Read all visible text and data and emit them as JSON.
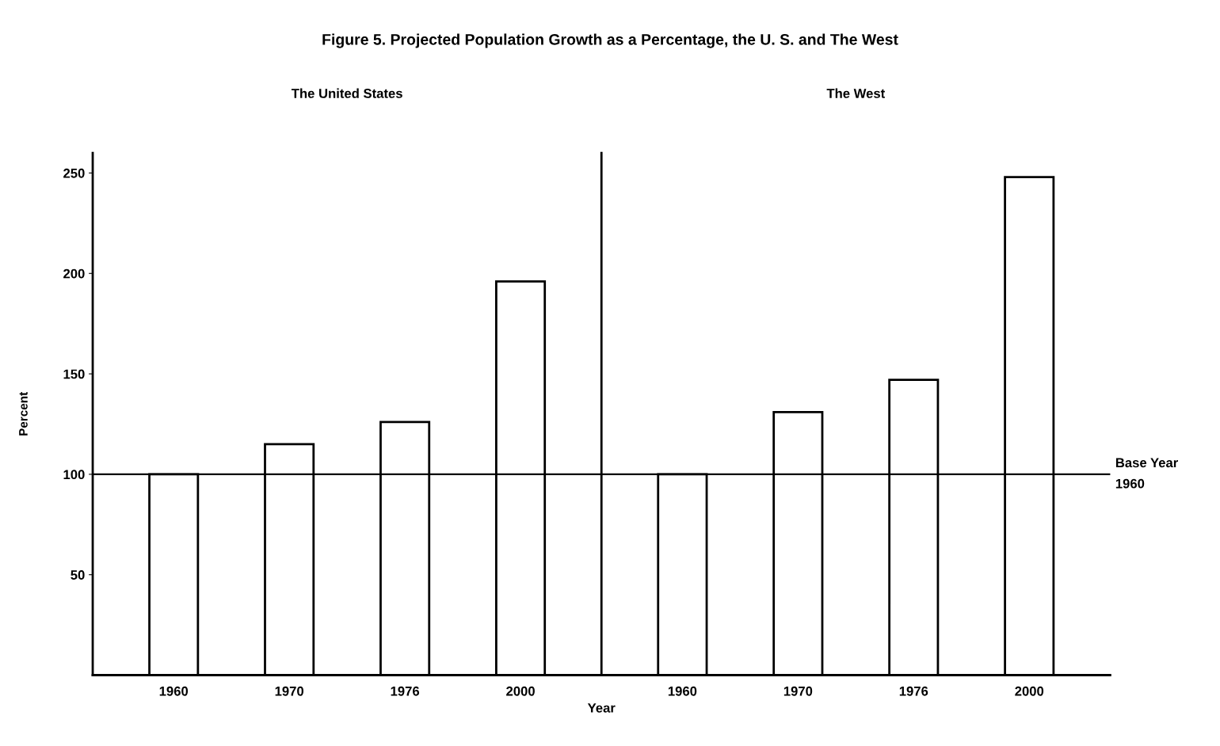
{
  "chart_data": [
    {
      "type": "bar",
      "title": "The United States",
      "xlabel": "Year",
      "ylabel": "Percent",
      "annotations": [
        "Figure 5. Projected Population Growth as a Percentage, the U. S. and The West"
      ],
      "categories": [
        "1960",
        "1970",
        "1976",
        "2000"
      ],
      "series": [
        {
          "color": "#ffffff",
          "values": [
            100,
            115,
            126,
            196
          ]
        }
      ],
      "ylim": [
        0,
        260
      ],
      "yticks": [
        50,
        100,
        150,
        200,
        250
      ],
      "ref_lines": [
        {
          "axis": "y",
          "value": 100,
          "color": "#000000"
        }
      ]
    },
    {
      "type": "bar",
      "title": "The West",
      "categories": [
        "1960",
        "1970",
        "1976",
        "2000"
      ],
      "series": [
        {
          "color": "#ffffff",
          "values": [
            100,
            131,
            147,
            248
          ]
        }
      ],
      "ylim": [
        0,
        260
      ],
      "tick_labels": "x",
      "ref_lines": [
        {
          "axis": "y",
          "value": 100,
          "label": "Base Year\n1960",
          "color": "#000000"
        }
      ]
    }
  ]
}
